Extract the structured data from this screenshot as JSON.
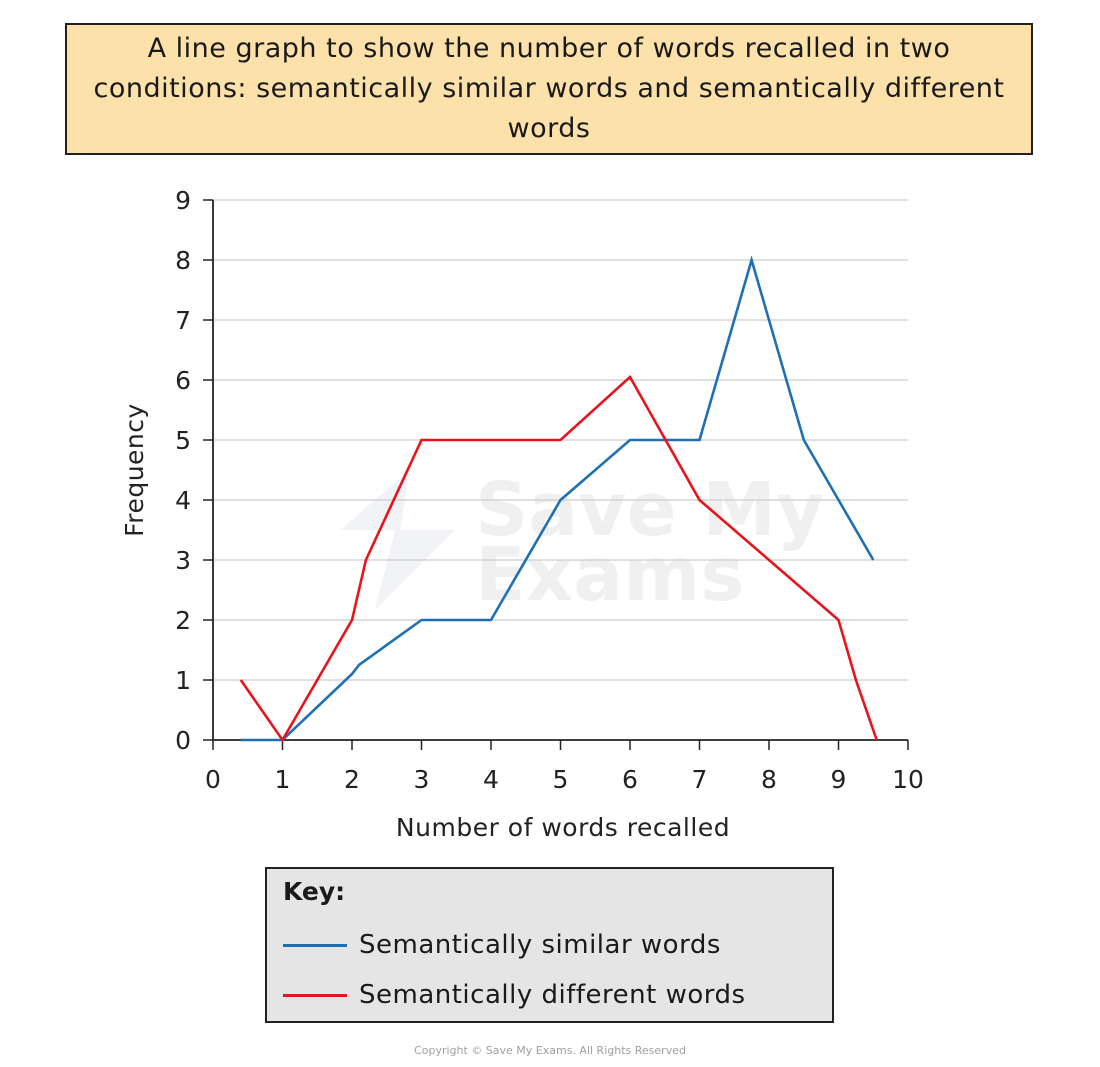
{
  "title": "A line graph to show the number of words recalled in two conditions: semantically similar words and semantically different words",
  "watermark": [
    "Save My",
    "Exams"
  ],
  "copyright": "Copyright © Save My Exams. All Rights Reserved",
  "key": {
    "title": "Key:"
  },
  "colors": {
    "similar": "#1f6fb5",
    "different": "#e8141c",
    "grid": "#cccccc",
    "title_bg": "#fde1ab",
    "key_bg": "#e5e5e5"
  },
  "chart_data": {
    "type": "line",
    "title": "A line graph to show the number of words recalled in two conditions: semantically similar words and semantically different words",
    "xlabel": "Number of words recalled",
    "ylabel": "Frequency",
    "xlim": [
      0,
      10
    ],
    "ylim": [
      0,
      9
    ],
    "xticks": [
      "0",
      "1",
      "2",
      "3",
      "4",
      "5",
      "6",
      "7",
      "8",
      "9",
      "10"
    ],
    "yticks": [
      "0",
      "1",
      "2",
      "3",
      "4",
      "5",
      "6",
      "7",
      "8",
      "9"
    ],
    "grid": "horizontal",
    "legend": "bottom",
    "series": [
      {
        "name": "Semantically similar words",
        "color": "#1f6fb5",
        "x": [
          0.4,
          1,
          2,
          2.1,
          3,
          4,
          5,
          6,
          7,
          7.75,
          8.5,
          9.5
        ],
        "y": [
          0,
          0,
          1.1,
          1.25,
          2,
          2,
          4,
          5,
          5,
          8,
          5,
          3
        ]
      },
      {
        "name": "Semantically different words",
        "color": "#e8141c",
        "x": [
          0.4,
          1,
          2,
          2.2,
          3,
          4,
          5,
          6,
          7,
          8,
          9,
          9.25,
          9.55
        ],
        "y": [
          1,
          0,
          2,
          3,
          5,
          5,
          5,
          6.05,
          4,
          3,
          2,
          1,
          0
        ]
      }
    ]
  }
}
